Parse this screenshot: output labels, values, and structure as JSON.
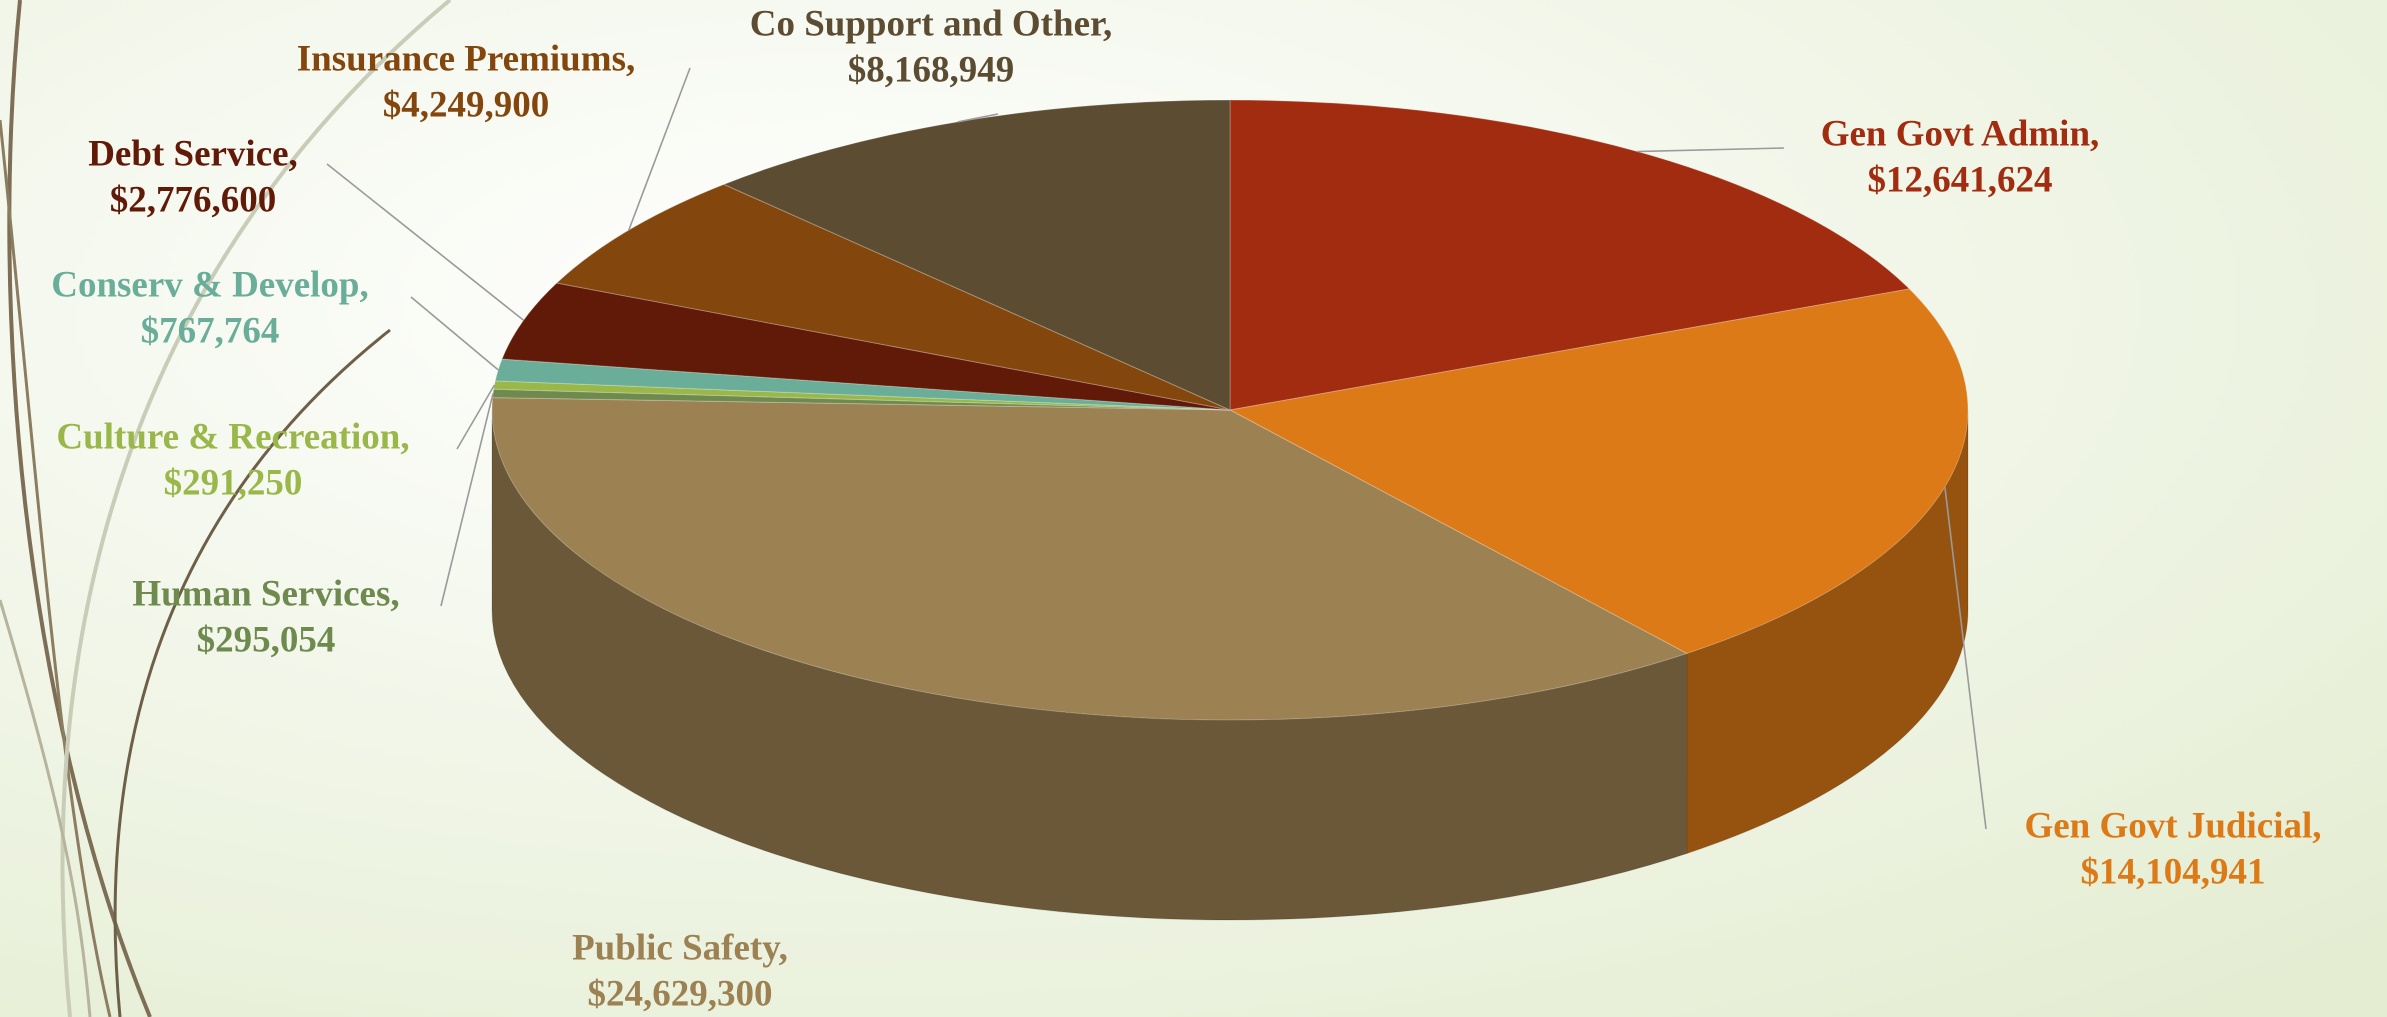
{
  "chart_data": {
    "type": "pie3d",
    "categories": [
      "Gen Govt Admin,",
      "Gen Govt Judicial,",
      "Public Safety,",
      "Human Services,",
      "Culture & Recreation,",
      "Conserv & Develop,",
      "Debt Service,",
      "Insurance Premiums,",
      "Co Support and Other,"
    ],
    "values": [
      12641624,
      14104941,
      24629300,
      295054,
      291250,
      767764,
      2776600,
      4249900,
      8168949
    ],
    "value_labels": [
      "$12,641,624",
      "$14,104,941",
      "$24,629,300",
      "$295,054",
      "$291,250",
      "$767,764",
      "$2,776,600",
      "$4,249,900",
      "$8,168,949"
    ],
    "colors": [
      "#a12c0f",
      "#dc7a18",
      "#9c8152",
      "#6f8a4f",
      "#9ab74a",
      "#6aae9a",
      "#621a08",
      "#83470e",
      "#5c4c32"
    ],
    "label_colors": [
      "#a12c0f",
      "#dc7a18",
      "#9c8152",
      "#6f8a4f",
      "#9ab74a",
      "#6aae9a",
      "#621a08",
      "#83470e",
      "#5c4c32"
    ]
  }
}
